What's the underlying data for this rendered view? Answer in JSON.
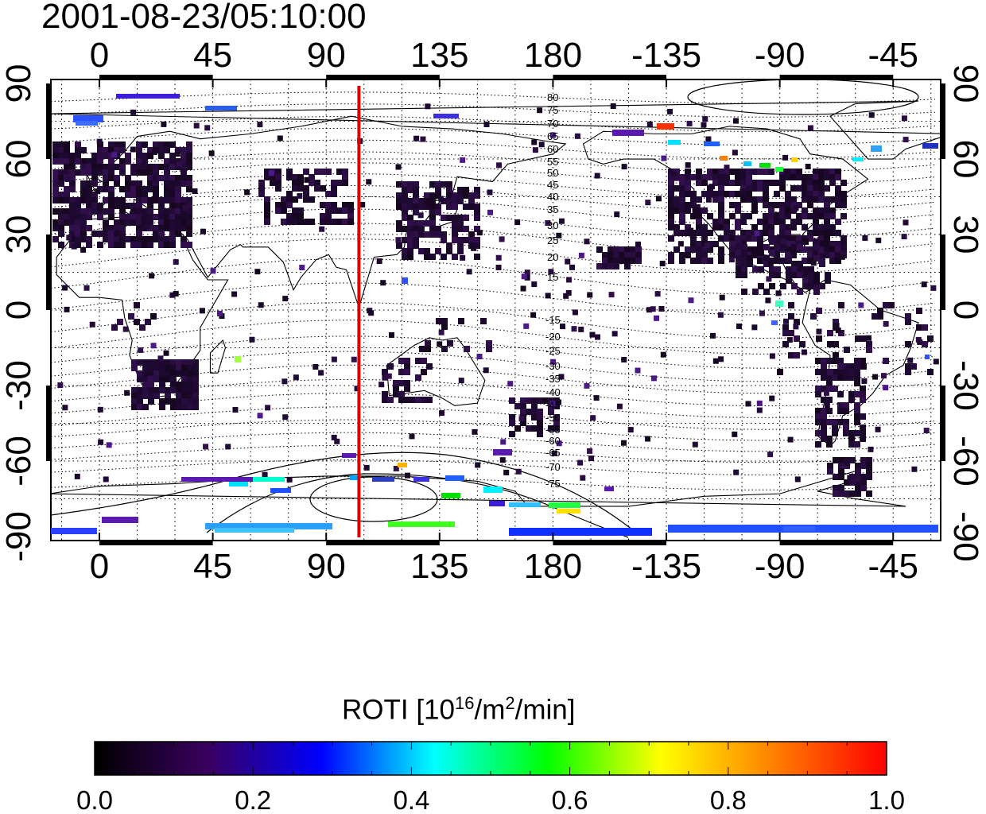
{
  "title": "2001-08-23/05:10:00",
  "map": {
    "lon_labels": [
      "0",
      "45",
      "90",
      "135",
      "180",
      "-135",
      "-90",
      "-45"
    ],
    "lat_labels": [
      "90",
      "60",
      "30",
      "0",
      "-30",
      "-60",
      "-90"
    ],
    "marker_line": {
      "longitude": 103,
      "color": "#e00000"
    },
    "north_contour_labels": [
      "80",
      "75",
      "70",
      "65",
      "60",
      "55",
      "50",
      "45",
      "40",
      "35",
      "30",
      "25",
      "20",
      "15"
    ],
    "south_contour_labels": [
      "-15",
      "-20",
      "-25",
      "-30",
      "-35",
      "-40",
      "-45",
      "-50",
      "-55",
      "-60",
      "-65",
      "-70",
      "-75"
    ]
  },
  "colorbar": {
    "title_prefix": "ROTI  [10",
    "title_sup1": "16",
    "title_mid": "/m",
    "title_sup2": "2",
    "title_suffix": "/min]",
    "tick_labels": [
      "0.0",
      "0.2",
      "0.4",
      "0.6",
      "0.8",
      "1.0"
    ],
    "colors": [
      "#000000",
      "#3a0060",
      "#0000ff",
      "#00ffff",
      "#00ff00",
      "#ffff00",
      "#ff8000",
      "#ff0000"
    ]
  }
}
